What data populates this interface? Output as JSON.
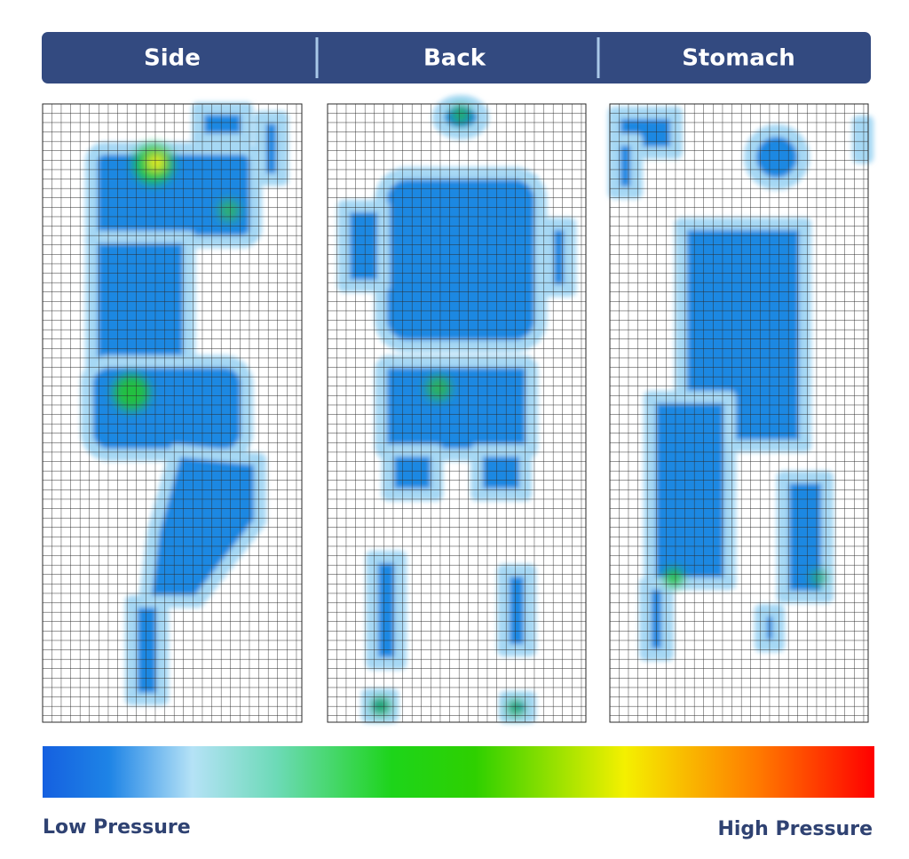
{
  "header": {
    "tabs": [
      "Side",
      "Back",
      "Stomach"
    ]
  },
  "legend": {
    "low": "Low Pressure",
    "high": "High Pressure"
  }
}
